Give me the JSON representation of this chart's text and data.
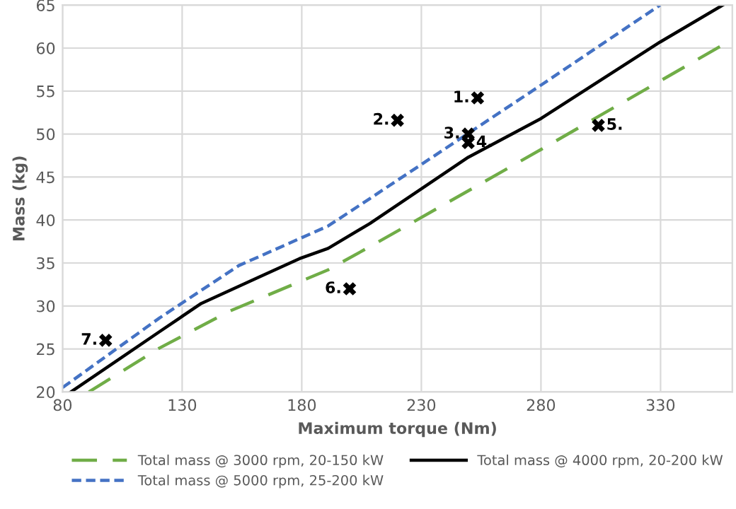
{
  "chart_data": {
    "type": "line",
    "xlabel": "Maximum torque (Nm)",
    "ylabel": "Mass (kg)",
    "xlim": [
      80,
      360
    ],
    "xticks": [
      80,
      130,
      180,
      230,
      280,
      330
    ],
    "ylim": [
      20,
      65
    ],
    "yticks": [
      20,
      25,
      30,
      35,
      40,
      45,
      50,
      55,
      60,
      65
    ],
    "grid": true,
    "legend": "bottom",
    "marker": "none",
    "series": [
      {
        "name": "Total mass @ 3000 rpm, 20-150 kW",
        "color": "#70ad47",
        "line_style": "dashed",
        "x": [
          91,
          120.5,
          149.8,
          191,
          208.5,
          280,
          360
        ],
        "values": [
          20,
          25.1,
          29.4,
          34.2,
          36.9,
          48.2,
          61
        ]
      },
      {
        "name": "Total mass @ 4000 rpm, 20-200 kW",
        "color": "#000000",
        "line_style": "solid",
        "x": [
          83.5,
          120.5,
          138,
          161.6,
          179,
          191,
          208.5,
          249.6,
          280,
          329.8,
          356
        ],
        "values": [
          20,
          27,
          30.3,
          33.3,
          35.5,
          36.7,
          39.6,
          47.3,
          51.8,
          60.7,
          65
        ]
      },
      {
        "name": "Total mass @ 5000 rpm, 25-200 kW",
        "color": "#4472c4",
        "line_style": "dotted",
        "x": [
          80,
          120.5,
          153.7,
          191,
          208.5,
          279,
          329.8
        ],
        "values": [
          20.5,
          28.6,
          34.7,
          39.3,
          42.5,
          55.5,
          65
        ]
      },
      {
        "type": "scatter",
        "marker": "cross",
        "color": "#000000",
        "x": [
          253.5,
          220,
          249.6,
          249.6,
          304,
          200,
          98
        ],
        "values": [
          54.2,
          51.6,
          50,
          49,
          51,
          32,
          26
        ]
      }
    ],
    "annotations": [
      {
        "text": "1.",
        "x": 253.5,
        "y": 54.2
      },
      {
        "text": "2.",
        "x": 220,
        "y": 51.6
      },
      {
        "text": "3.",
        "x": 249.6,
        "y": 50
      },
      {
        "text": "4.",
        "x": 249.6,
        "y": 49
      },
      {
        "text": "5.",
        "x": 304,
        "y": 51
      },
      {
        "text": "6.",
        "x": 200,
        "y": 32
      },
      {
        "text": "7.",
        "x": 98,
        "y": 26
      }
    ]
  }
}
